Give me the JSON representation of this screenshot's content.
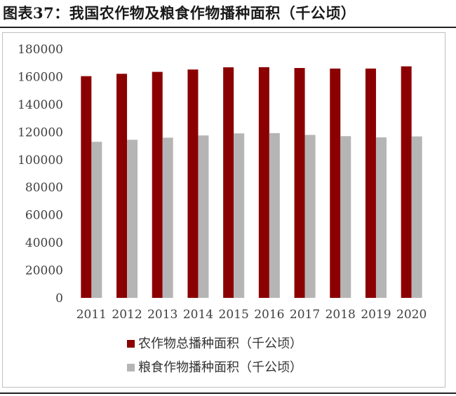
{
  "title": "图表37：我国农作物及粮食作物播种面积（千公顷）",
  "chart_data": {
    "type": "bar",
    "categories": [
      "2011",
      "2012",
      "2013",
      "2014",
      "2015",
      "2016",
      "2017",
      "2018",
      "2019",
      "2020"
    ],
    "series": [
      {
        "name": "农作物总播种面积（千公顷）",
        "color": "#8b0000",
        "values": [
          160400,
          162100,
          163500,
          165200,
          166800,
          166900,
          166300,
          165900,
          165900,
          167500
        ]
      },
      {
        "name": "粮食作物播种面积（千公顷）",
        "color": "#b5b5b5",
        "values": [
          112900,
          114400,
          115900,
          117500,
          119000,
          119200,
          117900,
          117000,
          116100,
          116800
        ]
      }
    ],
    "y_ticks": [
      "0",
      "20000",
      "40000",
      "60000",
      "80000",
      "100000",
      "120000",
      "140000",
      "160000",
      "180000"
    ],
    "ylim": [
      0,
      180000
    ],
    "legend_position": "bottom",
    "grid": false
  }
}
